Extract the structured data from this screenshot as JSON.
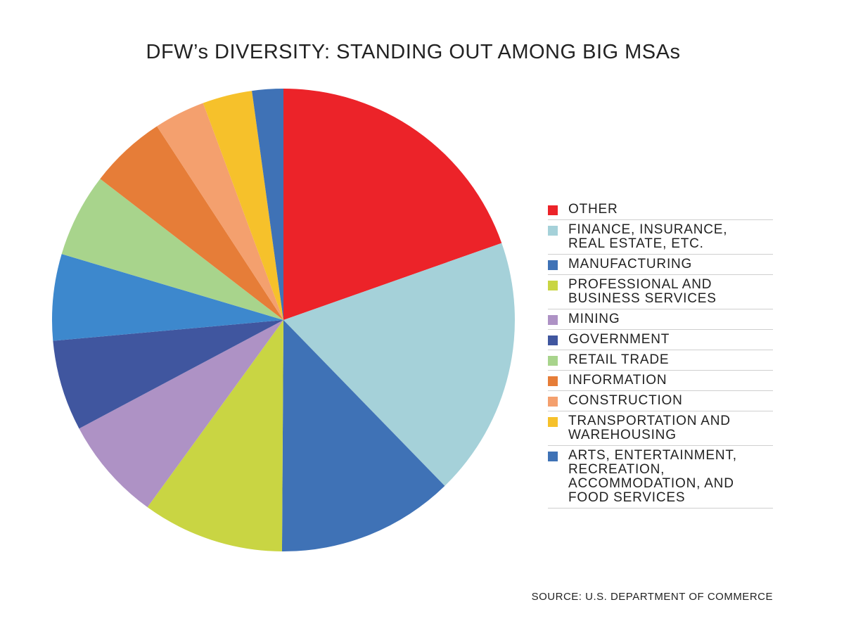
{
  "chart_data": {
    "type": "pie",
    "title": "DFW’s DIVERSITY: STANDING OUT AMONG BIG MSAs",
    "source": "SOURCE: U.S. DEPARTMENT OF COMMERCE",
    "legend_position": "right",
    "slices": [
      {
        "label": "OTHER",
        "value": 19.8,
        "color": "#ec2329"
      },
      {
        "label": "FINANCE, INSURANCE,\nREAL ESTATE, ETC.",
        "value": 18.3,
        "color": "#a5d1d9"
      },
      {
        "label": "MANUFACTURING",
        "value": 12.5,
        "color": "#3f72b6"
      },
      {
        "label": "PROFESSIONAL AND\nBUSINESS SERVICES",
        "value": 10.0,
        "color": "#c9d543"
      },
      {
        "label": "MINING",
        "value": 7.3,
        "color": "#ae92c5"
      },
      {
        "label": "GOVERNMENT",
        "value": 6.4,
        "color": "#40569f"
      },
      {
        "label": "RETAIL TRADE",
        "value": 6.1,
        "color": "#3d88cd"
      },
      {
        "label": "INFORMATION",
        "value": 5.9,
        "color": "#a8d48c"
      },
      {
        "label": "CONSTRUCTION",
        "value": 5.4,
        "color": "#e67d38"
      },
      {
        "label": "TRANSPORTATION AND\nWAREHOUSING",
        "value": 3.6,
        "color": "#f4a06e"
      },
      {
        "label": "ARTS, ENTERTAINMENT,\nRECREATION,\nACCOMMODATION, AND\nFOOD SERVICES",
        "value": 3.5,
        "color": "#f6c12b"
      }
    ],
    "extra_slice": {
      "value": 2.2,
      "color": "#3f72b6"
    }
  },
  "legend": [
    {
      "label": "OTHER",
      "color": "#ec2329"
    },
    {
      "label": "FINANCE, INSURANCE,\nREAL ESTATE, ETC.",
      "color": "#a5d1d9"
    },
    {
      "label": "MANUFACTURING",
      "color": "#3f72b6"
    },
    {
      "label": "PROFESSIONAL AND\nBUSINESS SERVICES",
      "color": "#c9d543"
    },
    {
      "label": "MINING",
      "color": "#ae92c5"
    },
    {
      "label": "GOVERNMENT",
      "color": "#40569f"
    },
    {
      "label": "RETAIL TRADE",
      "color": "#a8d48c"
    },
    {
      "label": "INFORMATION",
      "color": "#e67d38"
    },
    {
      "label": "CONSTRUCTION",
      "color": "#f4a06e"
    },
    {
      "label": "TRANSPORTATION AND\nWAREHOUSING",
      "color": "#f6c12b"
    },
    {
      "label": "ARTS, ENTERTAINMENT,\nRECREATION,\nACCOMMODATION, AND\nFOOD SERVICES",
      "color": "#3f72b6"
    }
  ]
}
